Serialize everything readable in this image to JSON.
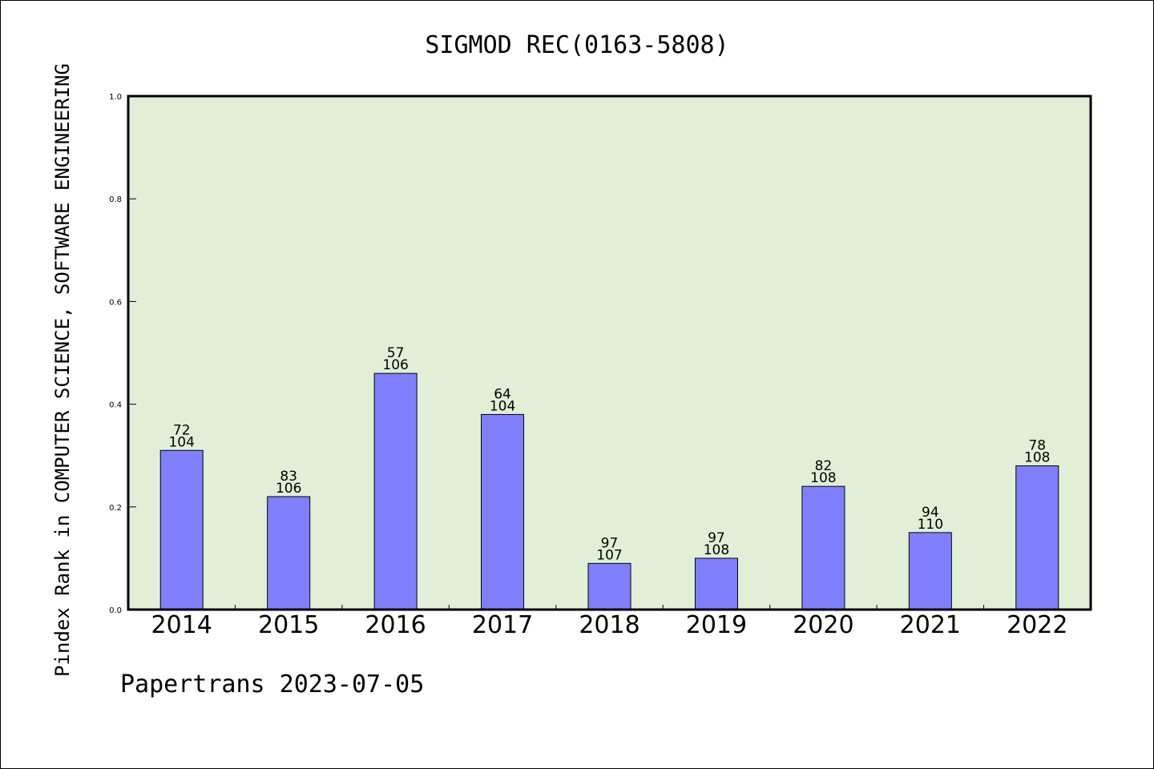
{
  "chart_data": {
    "type": "bar",
    "title": "SIGMOD REC(0163-5808)",
    "ylabel": "Pindex Rank in COMPUTER SCIENCE, SOFTWARE ENGINEERING",
    "xlabel": "",
    "footer": "Papertrans 2023-07-05",
    "categories": [
      "2014",
      "2015",
      "2016",
      "2017",
      "2018",
      "2019",
      "2020",
      "2021",
      "2022"
    ],
    "values": [
      0.31,
      0.22,
      0.46,
      0.38,
      0.09,
      0.1,
      0.24,
      0.15,
      0.28
    ],
    "rank": [
      "72",
      "83",
      "57",
      "64",
      "97",
      "97",
      "82",
      "94",
      "78"
    ],
    "total": [
      "104",
      "106",
      "106",
      "104",
      "107",
      "108",
      "108",
      "110",
      "108"
    ],
    "ylim": [
      0,
      1.0
    ],
    "yticks": [
      "0.0",
      "0.2",
      "0.4",
      "0.6",
      "0.8",
      "1.0"
    ],
    "grid": false,
    "colors": {
      "bar": "#8080ff",
      "plot_bg": "#e2efd6",
      "axis": "#000000"
    }
  }
}
